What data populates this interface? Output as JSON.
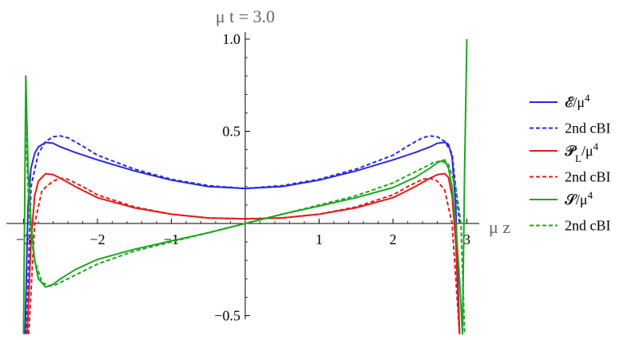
{
  "chart_data": {
    "type": "line",
    "title": "μ t = 3.0",
    "xlabel": "μ z",
    "ylabel": "",
    "xlim": [
      -3.1,
      3.1
    ],
    "ylim": [
      -0.6,
      1.0
    ],
    "x_ticks": [
      "−3",
      "−2",
      "−1",
      "1",
      "2",
      "3"
    ],
    "x_tick_values": [
      -3,
      -2,
      -1,
      1,
      2,
      3
    ],
    "y_ticks": [
      "1.0",
      "0.5",
      "−0.5"
    ],
    "y_tick_values": [
      1.0,
      0.5,
      -0.5
    ],
    "legend_position": "right",
    "colors": {
      "blue": "#2a2adb",
      "red": "#e01c1c",
      "green": "#1ea51e"
    },
    "legend": [
      {
        "label": "𝓔/μ",
        "sup": "4",
        "color": "#2a2adb",
        "dashed": false
      },
      {
        "label": "2nd cBI",
        "sup": "",
        "color": "#2a2adb",
        "dashed": true
      },
      {
        "label": "𝓟",
        "sub": "L",
        "label_tail": "/μ",
        "sup": "4",
        "color": "#e01c1c",
        "dashed": false
      },
      {
        "label": "2nd cBI",
        "sup": "",
        "color": "#e01c1c",
        "dashed": true
      },
      {
        "label": "𝓢/μ",
        "sup": "4",
        "color": "#1ea51e",
        "dashed": false
      },
      {
        "label": "2nd cBI",
        "sup": "",
        "color": "#1ea51e",
        "dashed": true
      }
    ],
    "series": [
      {
        "color": "#2a2adb",
        "dashed": false,
        "x": [
          -2.98,
          -2.94,
          -2.9,
          -2.85,
          -2.8,
          -2.7,
          -2.6,
          -2.5,
          -2.3,
          -2.0,
          -1.5,
          -1.0,
          -0.5,
          0,
          0.5,
          1.0,
          1.5,
          2.0,
          2.3,
          2.5,
          2.6,
          2.7,
          2.75,
          2.8,
          2.85,
          2.9
        ],
        "y": [
          -0.6,
          0.1,
          0.3,
          0.38,
          0.415,
          0.44,
          0.435,
          0.415,
          0.385,
          0.345,
          0.285,
          0.235,
          0.2,
          0.19,
          0.2,
          0.235,
          0.285,
          0.345,
          0.385,
          0.415,
          0.435,
          0.44,
          0.43,
          0.36,
          0.1,
          -0.6
        ]
      },
      {
        "color": "#2a2adb",
        "dashed": true,
        "x": [
          -2.96,
          -2.9,
          -2.8,
          -2.7,
          -2.6,
          -2.5,
          -2.4,
          -2.2,
          -2.0,
          -1.5,
          -1.0,
          -0.5,
          0,
          0.5,
          1.0,
          1.5,
          2.0,
          2.2,
          2.4,
          2.5,
          2.6,
          2.7,
          2.8,
          2.9
        ],
        "y": [
          -0.6,
          0.2,
          0.38,
          0.445,
          0.47,
          0.475,
          0.465,
          0.42,
          0.37,
          0.295,
          0.24,
          0.205,
          0.19,
          0.205,
          0.24,
          0.295,
          0.37,
          0.42,
          0.465,
          0.475,
          0.47,
          0.445,
          0.38,
          0.0
        ]
      },
      {
        "color": "#e01c1c",
        "dashed": false,
        "x": [
          -2.95,
          -2.9,
          -2.85,
          -2.8,
          -2.7,
          -2.6,
          -2.5,
          -2.3,
          -2.0,
          -1.5,
          -1.0,
          -0.5,
          0,
          0.5,
          1.0,
          1.5,
          2.0,
          2.3,
          2.5,
          2.6,
          2.7,
          2.75,
          2.8,
          2.85,
          2.9
        ],
        "y": [
          -0.6,
          -0.1,
          0.15,
          0.23,
          0.27,
          0.265,
          0.245,
          0.2,
          0.14,
          0.085,
          0.05,
          0.03,
          0.025,
          0.03,
          0.05,
          0.085,
          0.14,
          0.2,
          0.245,
          0.265,
          0.27,
          0.25,
          0.15,
          -0.1,
          -0.6
        ]
      },
      {
        "color": "#e01c1c",
        "dashed": true,
        "x": [
          -2.93,
          -2.85,
          -2.75,
          -2.6,
          -2.5,
          -2.4,
          -2.2,
          -2.0,
          -1.5,
          -1.0,
          -0.5,
          0,
          0.5,
          1.0,
          1.5,
          2.0,
          2.2,
          2.4,
          2.5,
          2.6,
          2.7,
          2.8,
          2.9
        ],
        "y": [
          -0.6,
          0.0,
          0.18,
          0.23,
          0.245,
          0.24,
          0.2,
          0.155,
          0.09,
          0.05,
          0.03,
          0.025,
          0.03,
          0.05,
          0.09,
          0.155,
          0.2,
          0.24,
          0.245,
          0.23,
          0.18,
          0.0,
          -0.6
        ]
      },
      {
        "color": "#1ea51e",
        "dashed": false,
        "x": [
          -3.0,
          -2.97,
          -2.94,
          -2.9,
          -2.85,
          -2.8,
          -2.7,
          -2.6,
          -2.5,
          -2.3,
          -2.0,
          -1.5,
          -1.0,
          -0.5,
          0,
          0.5,
          1.0,
          1.5,
          2.0,
          2.3,
          2.5,
          2.6,
          2.7,
          2.75,
          2.8,
          2.85,
          2.9,
          2.94,
          2.97,
          3.0
        ],
        "y": [
          -0.6,
          0.8,
          0.3,
          0.0,
          -0.2,
          -0.3,
          -0.345,
          -0.33,
          -0.3,
          -0.25,
          -0.195,
          -0.14,
          -0.095,
          -0.05,
          0.0,
          0.05,
          0.095,
          0.14,
          0.195,
          0.25,
          0.3,
          0.33,
          0.345,
          0.3,
          0.2,
          0.0,
          -0.3,
          -0.6,
          0.3,
          1.0
        ]
      },
      {
        "color": "#1ea51e",
        "dashed": true,
        "x": [
          -2.97,
          -2.92,
          -2.85,
          -2.75,
          -2.65,
          -2.55,
          -2.4,
          -2.2,
          -2.0,
          -1.5,
          -1.0,
          -0.5,
          0,
          0.5,
          1.0,
          1.5,
          2.0,
          2.2,
          2.4,
          2.55,
          2.65,
          2.75,
          2.85,
          2.92,
          2.97
        ],
        "y": [
          0.5,
          0.0,
          -0.2,
          -0.32,
          -0.34,
          -0.33,
          -0.3,
          -0.26,
          -0.22,
          -0.15,
          -0.1,
          -0.05,
          0.0,
          0.05,
          0.1,
          0.15,
          0.22,
          0.26,
          0.3,
          0.33,
          0.34,
          0.32,
          0.2,
          0.0,
          -0.6
        ]
      }
    ]
  }
}
